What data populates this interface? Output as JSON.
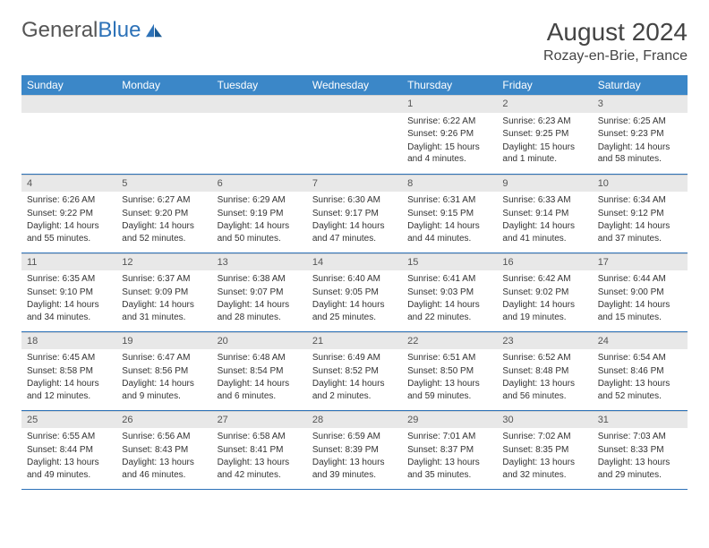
{
  "logo": {
    "part1": "General",
    "part2": "Blue"
  },
  "header": {
    "title": "August 2024",
    "location": "Rozay-en-Brie, France"
  },
  "colors": {
    "header_bg": "#3b87c8",
    "header_text": "#ffffff",
    "daynum_bg": "#e8e8e8",
    "row_border": "#2d72b8",
    "logo_blue": "#2d72b8",
    "text": "#333333"
  },
  "weekdays": [
    "Sunday",
    "Monday",
    "Tuesday",
    "Wednesday",
    "Thursday",
    "Friday",
    "Saturday"
  ],
  "leading_blanks": 4,
  "days": [
    {
      "n": 1,
      "sunrise": "6:22 AM",
      "sunset": "9:26 PM",
      "daylight": "15 hours and 4 minutes."
    },
    {
      "n": 2,
      "sunrise": "6:23 AM",
      "sunset": "9:25 PM",
      "daylight": "15 hours and 1 minute."
    },
    {
      "n": 3,
      "sunrise": "6:25 AM",
      "sunset": "9:23 PM",
      "daylight": "14 hours and 58 minutes."
    },
    {
      "n": 4,
      "sunrise": "6:26 AM",
      "sunset": "9:22 PM",
      "daylight": "14 hours and 55 minutes."
    },
    {
      "n": 5,
      "sunrise": "6:27 AM",
      "sunset": "9:20 PM",
      "daylight": "14 hours and 52 minutes."
    },
    {
      "n": 6,
      "sunrise": "6:29 AM",
      "sunset": "9:19 PM",
      "daylight": "14 hours and 50 minutes."
    },
    {
      "n": 7,
      "sunrise": "6:30 AM",
      "sunset": "9:17 PM",
      "daylight": "14 hours and 47 minutes."
    },
    {
      "n": 8,
      "sunrise": "6:31 AM",
      "sunset": "9:15 PM",
      "daylight": "14 hours and 44 minutes."
    },
    {
      "n": 9,
      "sunrise": "6:33 AM",
      "sunset": "9:14 PM",
      "daylight": "14 hours and 41 minutes."
    },
    {
      "n": 10,
      "sunrise": "6:34 AM",
      "sunset": "9:12 PM",
      "daylight": "14 hours and 37 minutes."
    },
    {
      "n": 11,
      "sunrise": "6:35 AM",
      "sunset": "9:10 PM",
      "daylight": "14 hours and 34 minutes."
    },
    {
      "n": 12,
      "sunrise": "6:37 AM",
      "sunset": "9:09 PM",
      "daylight": "14 hours and 31 minutes."
    },
    {
      "n": 13,
      "sunrise": "6:38 AM",
      "sunset": "9:07 PM",
      "daylight": "14 hours and 28 minutes."
    },
    {
      "n": 14,
      "sunrise": "6:40 AM",
      "sunset": "9:05 PM",
      "daylight": "14 hours and 25 minutes."
    },
    {
      "n": 15,
      "sunrise": "6:41 AM",
      "sunset": "9:03 PM",
      "daylight": "14 hours and 22 minutes."
    },
    {
      "n": 16,
      "sunrise": "6:42 AM",
      "sunset": "9:02 PM",
      "daylight": "14 hours and 19 minutes."
    },
    {
      "n": 17,
      "sunrise": "6:44 AM",
      "sunset": "9:00 PM",
      "daylight": "14 hours and 15 minutes."
    },
    {
      "n": 18,
      "sunrise": "6:45 AM",
      "sunset": "8:58 PM",
      "daylight": "14 hours and 12 minutes."
    },
    {
      "n": 19,
      "sunrise": "6:47 AM",
      "sunset": "8:56 PM",
      "daylight": "14 hours and 9 minutes."
    },
    {
      "n": 20,
      "sunrise": "6:48 AM",
      "sunset": "8:54 PM",
      "daylight": "14 hours and 6 minutes."
    },
    {
      "n": 21,
      "sunrise": "6:49 AM",
      "sunset": "8:52 PM",
      "daylight": "14 hours and 2 minutes."
    },
    {
      "n": 22,
      "sunrise": "6:51 AM",
      "sunset": "8:50 PM",
      "daylight": "13 hours and 59 minutes."
    },
    {
      "n": 23,
      "sunrise": "6:52 AM",
      "sunset": "8:48 PM",
      "daylight": "13 hours and 56 minutes."
    },
    {
      "n": 24,
      "sunrise": "6:54 AM",
      "sunset": "8:46 PM",
      "daylight": "13 hours and 52 minutes."
    },
    {
      "n": 25,
      "sunrise": "6:55 AM",
      "sunset": "8:44 PM",
      "daylight": "13 hours and 49 minutes."
    },
    {
      "n": 26,
      "sunrise": "6:56 AM",
      "sunset": "8:43 PM",
      "daylight": "13 hours and 46 minutes."
    },
    {
      "n": 27,
      "sunrise": "6:58 AM",
      "sunset": "8:41 PM",
      "daylight": "13 hours and 42 minutes."
    },
    {
      "n": 28,
      "sunrise": "6:59 AM",
      "sunset": "8:39 PM",
      "daylight": "13 hours and 39 minutes."
    },
    {
      "n": 29,
      "sunrise": "7:01 AM",
      "sunset": "8:37 PM",
      "daylight": "13 hours and 35 minutes."
    },
    {
      "n": 30,
      "sunrise": "7:02 AM",
      "sunset": "8:35 PM",
      "daylight": "13 hours and 32 minutes."
    },
    {
      "n": 31,
      "sunrise": "7:03 AM",
      "sunset": "8:33 PM",
      "daylight": "13 hours and 29 minutes."
    }
  ],
  "labels": {
    "sunrise": "Sunrise:",
    "sunset": "Sunset:",
    "daylight": "Daylight:"
  }
}
